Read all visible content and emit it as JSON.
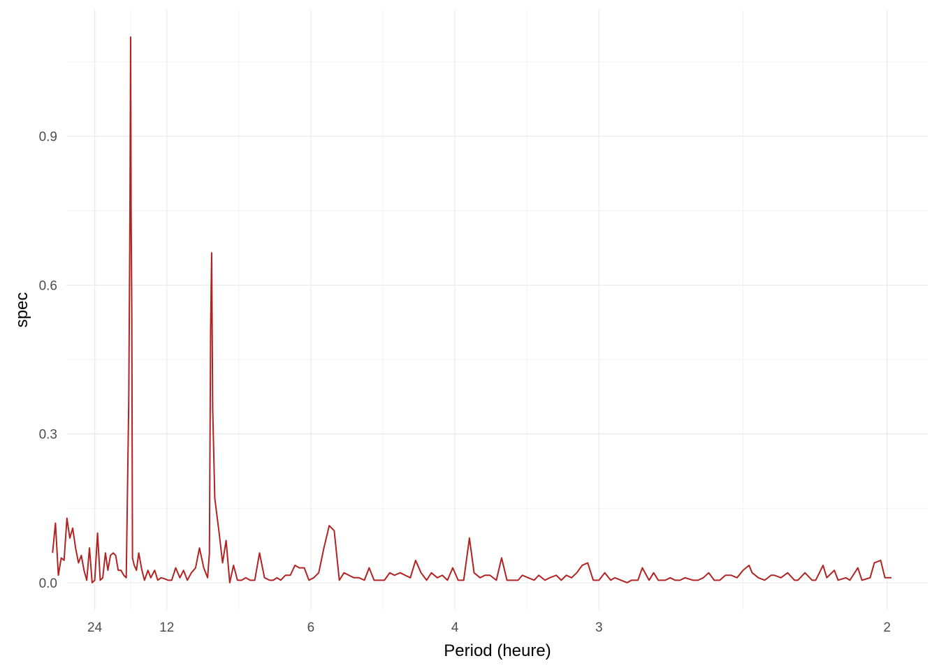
{
  "colors": {
    "line": "#b22222",
    "grid_major": "#ebebeb",
    "grid_minor": "#f2f2f2",
    "tick_text": "#4d4d4d",
    "axis_text": "#000000"
  },
  "chart_data": {
    "type": "line",
    "title": "",
    "xlabel": "Period (heure)",
    "ylabel": "spec",
    "x_scale": "reciprocal",
    "x_ticks": [
      {
        "label": "24",
        "period": 24
      },
      {
        "label": "12",
        "period": 12
      },
      {
        "label": "6",
        "period": 6
      },
      {
        "label": "4",
        "period": 4
      },
      {
        "label": "3",
        "period": 3
      },
      {
        "label": "2",
        "period": 2
      }
    ],
    "y_ticks": [
      {
        "label": "0.0",
        "value": 0.0
      },
      {
        "label": "0.3",
        "value": 0.3
      },
      {
        "label": "0.6",
        "value": 0.6
      },
      {
        "label": "0.9",
        "value": 0.9
      }
    ],
    "xlim_period": [
      39.6,
      1.91
    ],
    "ylim": [
      -0.055,
      1.155
    ],
    "grid": true,
    "series": [
      {
        "points": [
          [
            57.9,
            0.06
          ],
          [
            52.8,
            0.12
          ],
          [
            48.5,
            0.015
          ],
          [
            44.9,
            0.05
          ],
          [
            41.8,
            0.045
          ],
          [
            39.1,
            0.13
          ],
          [
            36.7,
            0.09
          ],
          [
            34.6,
            0.11
          ],
          [
            32.7,
            0.07
          ],
          [
            31.0,
            0.04
          ],
          [
            29.5,
            0.055
          ],
          [
            28.2,
            0.025
          ],
          [
            27.0,
            0.005
          ],
          [
            25.9,
            0.07
          ],
          [
            24.9,
            0.0
          ],
          [
            24.0,
            0.005
          ],
          [
            23.1,
            0.1
          ],
          [
            22.3,
            0.005
          ],
          [
            21.6,
            0.01
          ],
          [
            20.9,
            0.06
          ],
          [
            20.3,
            0.025
          ],
          [
            19.7,
            0.055
          ],
          [
            19.1,
            0.06
          ],
          [
            18.6,
            0.055
          ],
          [
            18.1,
            0.025
          ],
          [
            17.6,
            0.025
          ],
          [
            17.1,
            0.015
          ],
          [
            16.7,
            0.01
          ],
          [
            16.3,
            0.37
          ],
          [
            16.12,
            0.75
          ],
          [
            16.02,
            1.1
          ],
          [
            15.95,
            0.75
          ],
          [
            15.85,
            0.55
          ],
          [
            15.75,
            0.05
          ],
          [
            15.5,
            0.035
          ],
          [
            15.2,
            0.025
          ],
          [
            14.9,
            0.06
          ],
          [
            14.5,
            0.025
          ],
          [
            14.2,
            0.005
          ],
          [
            13.8,
            0.025
          ],
          [
            13.5,
            0.01
          ],
          [
            13.1,
            0.025
          ],
          [
            12.8,
            0.005
          ],
          [
            12.5,
            0.01
          ],
          [
            12.2,
            0.008
          ],
          [
            11.9,
            0.005
          ],
          [
            11.6,
            0.005
          ],
          [
            11.3,
            0.03
          ],
          [
            11.0,
            0.01
          ],
          [
            10.75,
            0.025
          ],
          [
            10.5,
            0.005
          ],
          [
            10.25,
            0.02
          ],
          [
            10.0,
            0.03
          ],
          [
            9.78,
            0.07
          ],
          [
            9.55,
            0.03
          ],
          [
            9.35,
            0.01
          ],
          [
            9.26,
            0.06
          ],
          [
            9.2,
            0.51
          ],
          [
            9.15,
            0.665
          ],
          [
            9.1,
            0.35
          ],
          [
            9.0,
            0.17
          ],
          [
            8.8,
            0.1
          ],
          [
            8.65,
            0.04
          ],
          [
            8.5,
            0.085
          ],
          [
            8.35,
            0.0
          ],
          [
            8.2,
            0.035
          ],
          [
            8.05,
            0.005
          ],
          [
            7.9,
            0.005
          ],
          [
            7.75,
            0.01
          ],
          [
            7.6,
            0.005
          ],
          [
            7.45,
            0.005
          ],
          [
            7.3,
            0.06
          ],
          [
            7.15,
            0.01
          ],
          [
            7.0,
            0.005
          ],
          [
            6.9,
            0.005
          ],
          [
            6.8,
            0.01
          ],
          [
            6.7,
            0.005
          ],
          [
            6.58,
            0.015
          ],
          [
            6.46,
            0.015
          ],
          [
            6.35,
            0.035
          ],
          [
            6.25,
            0.03
          ],
          [
            6.14,
            0.03
          ],
          [
            6.04,
            0.005
          ],
          [
            5.94,
            0.01
          ],
          [
            5.84,
            0.02
          ],
          [
            5.74,
            0.07
          ],
          [
            5.64,
            0.115
          ],
          [
            5.55,
            0.105
          ],
          [
            5.46,
            0.005
          ],
          [
            5.38,
            0.02
          ],
          [
            5.3,
            0.015
          ],
          [
            5.22,
            0.01
          ],
          [
            5.14,
            0.01
          ],
          [
            5.06,
            0.005
          ],
          [
            4.99,
            0.03
          ],
          [
            4.92,
            0.005
          ],
          [
            4.85,
            0.005
          ],
          [
            4.78,
            0.005
          ],
          [
            4.71,
            0.02
          ],
          [
            4.65,
            0.015
          ],
          [
            4.58,
            0.02
          ],
          [
            4.52,
            0.015
          ],
          [
            4.46,
            0.01
          ],
          [
            4.4,
            0.045
          ],
          [
            4.34,
            0.02
          ],
          [
            4.28,
            0.005
          ],
          [
            4.23,
            0.02
          ],
          [
            4.17,
            0.01
          ],
          [
            4.12,
            0.015
          ],
          [
            4.07,
            0.005
          ],
          [
            4.02,
            0.03
          ],
          [
            3.97,
            0.005
          ],
          [
            3.92,
            0.005
          ],
          [
            3.87,
            0.09
          ],
          [
            3.83,
            0.02
          ],
          [
            3.78,
            0.01
          ],
          [
            3.74,
            0.015
          ],
          [
            3.7,
            0.015
          ],
          [
            3.65,
            0.005
          ],
          [
            3.61,
            0.05
          ],
          [
            3.57,
            0.005
          ],
          [
            3.53,
            0.005
          ],
          [
            3.49,
            0.005
          ],
          [
            3.46,
            0.015
          ],
          [
            3.42,
            0.01
          ],
          [
            3.38,
            0.005
          ],
          [
            3.35,
            0.015
          ],
          [
            3.31,
            0.005
          ],
          [
            3.28,
            0.01
          ],
          [
            3.24,
            0.015
          ],
          [
            3.21,
            0.005
          ],
          [
            3.18,
            0.015
          ],
          [
            3.15,
            0.01
          ],
          [
            3.12,
            0.02
          ],
          [
            3.09,
            0.035
          ],
          [
            3.06,
            0.04
          ],
          [
            3.03,
            0.005
          ],
          [
            3.0,
            0.005
          ],
          [
            2.97,
            0.02
          ],
          [
            2.94,
            0.005
          ],
          [
            2.92,
            0.01
          ],
          [
            2.89,
            0.005
          ],
          [
            2.86,
            0.0
          ],
          [
            2.84,
            0.005
          ],
          [
            2.81,
            0.005
          ],
          [
            2.79,
            0.03
          ],
          [
            2.76,
            0.005
          ],
          [
            2.74,
            0.02
          ],
          [
            2.72,
            0.005
          ],
          [
            2.69,
            0.005
          ],
          [
            2.67,
            0.01
          ],
          [
            2.65,
            0.005
          ],
          [
            2.63,
            0.005
          ],
          [
            2.61,
            0.01
          ],
          [
            2.58,
            0.005
          ],
          [
            2.56,
            0.005
          ],
          [
            2.54,
            0.01
          ],
          [
            2.52,
            0.02
          ],
          [
            2.5,
            0.005
          ],
          [
            2.48,
            0.005
          ],
          [
            2.46,
            0.015
          ],
          [
            2.44,
            0.015
          ],
          [
            2.42,
            0.01
          ],
          [
            2.4,
            0.025
          ],
          [
            2.38,
            0.035
          ],
          [
            2.37,
            0.02
          ],
          [
            2.35,
            0.01
          ],
          [
            2.33,
            0.005
          ],
          [
            2.31,
            0.015
          ],
          [
            2.3,
            0.015
          ],
          [
            2.28,
            0.01
          ],
          [
            2.26,
            0.02
          ],
          [
            2.24,
            0.005
          ],
          [
            2.23,
            0.005
          ],
          [
            2.21,
            0.02
          ],
          [
            2.19,
            0.005
          ],
          [
            2.18,
            0.005
          ],
          [
            2.16,
            0.035
          ],
          [
            2.15,
            0.01
          ],
          [
            2.13,
            0.025
          ],
          [
            2.12,
            0.005
          ],
          [
            2.1,
            0.01
          ],
          [
            2.09,
            0.005
          ],
          [
            2.07,
            0.03
          ],
          [
            2.06,
            0.005
          ],
          [
            2.04,
            0.01
          ],
          [
            2.03,
            0.04
          ],
          [
            2.015,
            0.045
          ],
          [
            2.005,
            0.01
          ],
          [
            1.99,
            0.01
          ]
        ]
      }
    ]
  }
}
